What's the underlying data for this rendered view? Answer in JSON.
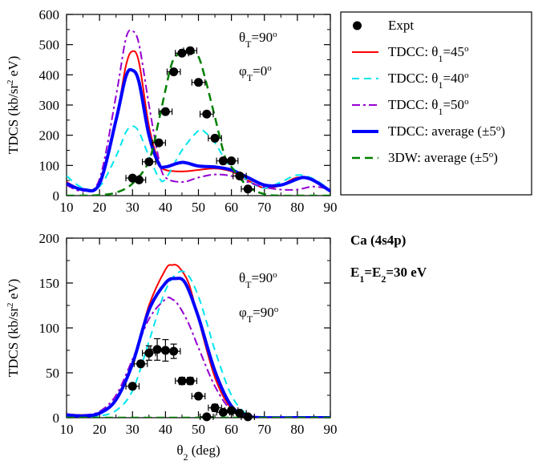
{
  "chart_data": [
    {
      "type": "line",
      "panel": "top",
      "xlim": [
        10,
        90
      ],
      "ylim": [
        0,
        600
      ],
      "xticks": [
        "10",
        "20",
        "30",
        "40",
        "50",
        "60",
        "70",
        "80",
        "90"
      ],
      "yticks": [
        "0",
        "100",
        "200",
        "300",
        "400",
        "500",
        "600"
      ],
      "ylabel_parts": {
        "main": "TDCS (kb/sr",
        "sup": "2",
        "tail": " eV)"
      },
      "annotations": [
        {
          "base": "θ",
          "sub": "T",
          "rest": "=90",
          "sup": "o"
        },
        {
          "base": "φ",
          "sub": "T",
          "rest": "=0",
          "sup": "o"
        }
      ],
      "series": [
        {
          "key": "tdcc45",
          "color": "#ff0000",
          "dash": "",
          "width": 2,
          "x": [
            10,
            15,
            20,
            25,
            28,
            30,
            32,
            35,
            38,
            40,
            45,
            50,
            55,
            60,
            65,
            70,
            75,
            80,
            85,
            90
          ],
          "y": [
            45,
            20,
            40,
            250,
            430,
            478,
            440,
            230,
            110,
            85,
            80,
            85,
            90,
            80,
            50,
            25,
            35,
            60,
            48,
            15
          ]
        },
        {
          "key": "tdcc40",
          "color": "#00e5ee",
          "dash": "9,6",
          "width": 2,
          "x": [
            10,
            15,
            20,
            25,
            28,
            30,
            32,
            35,
            38,
            40,
            45,
            50,
            52,
            55,
            58,
            60,
            65,
            70,
            75,
            80,
            85,
            90
          ],
          "y": [
            65,
            25,
            30,
            130,
            210,
            230,
            210,
            130,
            60,
            55,
            150,
            215,
            210,
            175,
            120,
            95,
            50,
            25,
            45,
            68,
            55,
            18
          ]
        },
        {
          "key": "tdcc50",
          "color": "#9400d3",
          "dash": "10,4,3,4",
          "width": 2,
          "x": [
            10,
            15,
            20,
            25,
            28,
            30,
            32,
            35,
            38,
            40,
            45,
            50,
            55,
            60,
            65,
            70,
            75,
            80,
            85,
            90
          ],
          "y": [
            35,
            15,
            55,
            330,
            520,
            545,
            500,
            300,
            120,
            60,
            45,
            60,
            70,
            65,
            45,
            28,
            20,
            20,
            30,
            20
          ]
        },
        {
          "key": "tdccavg",
          "color": "#0000ff",
          "dash": "",
          "width": 4,
          "x": [
            10,
            15,
            20,
            25,
            28,
            30,
            32,
            35,
            38,
            40,
            45,
            50,
            55,
            60,
            65,
            70,
            75,
            80,
            82,
            85,
            90
          ],
          "y": [
            40,
            20,
            40,
            250,
            395,
            415,
            375,
            200,
            105,
            95,
            110,
            98,
            95,
            85,
            60,
            35,
            35,
            55,
            60,
            50,
            15
          ]
        },
        {
          "key": "dw3",
          "color": "#008000",
          "dash": "10,6",
          "width": 2.5,
          "x": [
            10,
            15,
            20,
            25,
            30,
            35,
            38,
            40,
            42,
            44,
            46,
            48,
            50,
            52,
            55,
            58,
            60,
            65,
            70,
            75,
            80,
            85,
            90
          ],
          "y": [
            0,
            0,
            2,
            10,
            40,
            115,
            250,
            350,
            440,
            470,
            478,
            475,
            460,
            390,
            260,
            130,
            95,
            30,
            5,
            0,
            0,
            0,
            0
          ]
        }
      ],
      "expt": {
        "x": [
          30,
          32,
          35,
          38,
          40,
          42.5,
          45,
          47.5,
          50,
          52.5,
          55,
          57.5,
          60,
          62.5,
          65
        ],
        "y": [
          58,
          52,
          112,
          175,
          278,
          410,
          472,
          480,
          375,
          270,
          190,
          115,
          115,
          65,
          22
        ],
        "xerr": 2,
        "yerr": 8
      }
    },
    {
      "type": "line",
      "panel": "bottom",
      "xlim": [
        10,
        90
      ],
      "ylim": [
        0,
        200
      ],
      "xticks": [
        "10",
        "20",
        "30",
        "40",
        "50",
        "60",
        "70",
        "80",
        "90"
      ],
      "yticks": [
        "0",
        "50",
        "100",
        "150",
        "200"
      ],
      "xlabel_parts": {
        "main": "θ",
        "sub": "2",
        "tail": " (deg)"
      },
      "ylabel_parts": {
        "main": "TDCS (kb/sr",
        "sup": "2",
        "tail": " eV)"
      },
      "annotations": [
        {
          "base": "θ",
          "sub": "T",
          "rest": "=90",
          "sup": "o"
        },
        {
          "base": "φ",
          "sub": "T",
          "rest": "=90",
          "sup": "o"
        }
      ],
      "series": [
        {
          "key": "tdcc45",
          "color": "#ff0000",
          "dash": "",
          "width": 2,
          "x": [
            10,
            15,
            20,
            25,
            30,
            35,
            40,
            42,
            44,
            47,
            50,
            55,
            60,
            65,
            70,
            80,
            90
          ],
          "y": [
            4,
            3,
            5,
            20,
            60,
            125,
            165,
            170,
            168,
            150,
            110,
            45,
            10,
            1,
            0,
            0,
            0
          ]
        },
        {
          "key": "tdcc40",
          "color": "#00e5ee",
          "dash": "9,6",
          "width": 2,
          "x": [
            10,
            15,
            20,
            25,
            30,
            35,
            40,
            44,
            47,
            50,
            53,
            55,
            60,
            65,
            70,
            80,
            90
          ],
          "y": [
            2,
            1,
            2,
            8,
            30,
            85,
            142,
            162,
            158,
            135,
            100,
            75,
            25,
            3,
            0,
            0,
            0
          ]
        },
        {
          "key": "tdcc50",
          "color": "#9400d3",
          "dash": "10,4,3,4",
          "width": 2,
          "x": [
            10,
            15,
            20,
            25,
            30,
            35,
            40,
            42,
            44,
            47,
            50,
            55,
            60,
            65,
            70,
            80,
            90
          ],
          "y": [
            4,
            3,
            7,
            25,
            65,
            110,
            132,
            132,
            125,
            105,
            78,
            35,
            8,
            1,
            0,
            0,
            0
          ]
        },
        {
          "key": "tdccavg",
          "color": "#0000ff",
          "dash": "",
          "width": 4,
          "x": [
            10,
            15,
            20,
            25,
            30,
            35,
            40,
            43,
            46,
            50,
            55,
            60,
            65,
            70,
            80,
            90
          ],
          "y": [
            3,
            2,
            5,
            20,
            60,
            120,
            150,
            155,
            150,
            112,
            52,
            13,
            2,
            0,
            0,
            0
          ]
        },
        {
          "key": "dw3",
          "color": "#008000",
          "dash": "10,6",
          "width": 2.5,
          "x": [
            10,
            20,
            30,
            40,
            50,
            60,
            70,
            80,
            90
          ],
          "y": [
            0,
            0,
            0,
            0,
            0,
            0,
            0,
            0,
            0
          ]
        }
      ],
      "expt": {
        "x": [
          30,
          32.5,
          35,
          37.5,
          40,
          42.5,
          45,
          47.5,
          50,
          52.5,
          55,
          57.5,
          60,
          62.5,
          65
        ],
        "y": [
          35,
          60,
          72,
          76,
          75,
          74,
          41,
          41,
          24,
          1,
          11,
          6,
          8,
          5,
          1
        ],
        "xerr": 2,
        "yerr": [
          3,
          3,
          8,
          12,
          12,
          8,
          4,
          4,
          3,
          2,
          4,
          3,
          2,
          2,
          1
        ]
      }
    }
  ],
  "legend": {
    "entries": [
      {
        "key": "expt",
        "parts": [
          {
            "t": "Expt"
          }
        ]
      },
      {
        "key": "tdcc45",
        "parts": [
          {
            "t": "TDCC: θ"
          },
          {
            "t": "1",
            "s": "sub"
          },
          {
            "t": "=45"
          },
          {
            "t": "o",
            "s": "sup"
          }
        ]
      },
      {
        "key": "tdcc40",
        "parts": [
          {
            "t": "TDCC: θ"
          },
          {
            "t": "1",
            "s": "sub"
          },
          {
            "t": "=40"
          },
          {
            "t": "o",
            "s": "sup"
          }
        ]
      },
      {
        "key": "tdcc50",
        "parts": [
          {
            "t": "TDCC: θ"
          },
          {
            "t": "1",
            "s": "sub"
          },
          {
            "t": "=50"
          },
          {
            "t": "o",
            "s": "sup"
          }
        ]
      },
      {
        "key": "tdccavg",
        "parts": [
          {
            "t": "TDCC: average (±5"
          },
          {
            "t": "o",
            "s": "sup"
          },
          {
            "t": ")"
          }
        ]
      },
      {
        "key": "dw3",
        "parts": [
          {
            "t": "3DW: average (±5"
          },
          {
            "t": "o",
            "s": "sup"
          },
          {
            "t": ")"
          }
        ]
      }
    ]
  },
  "side_labels": {
    "target": "Ca (4s4p)",
    "energy": {
      "main": "E",
      "sub1": "1",
      "mid": "=E",
      "sub2": "2",
      "tail": "=30 eV"
    }
  }
}
